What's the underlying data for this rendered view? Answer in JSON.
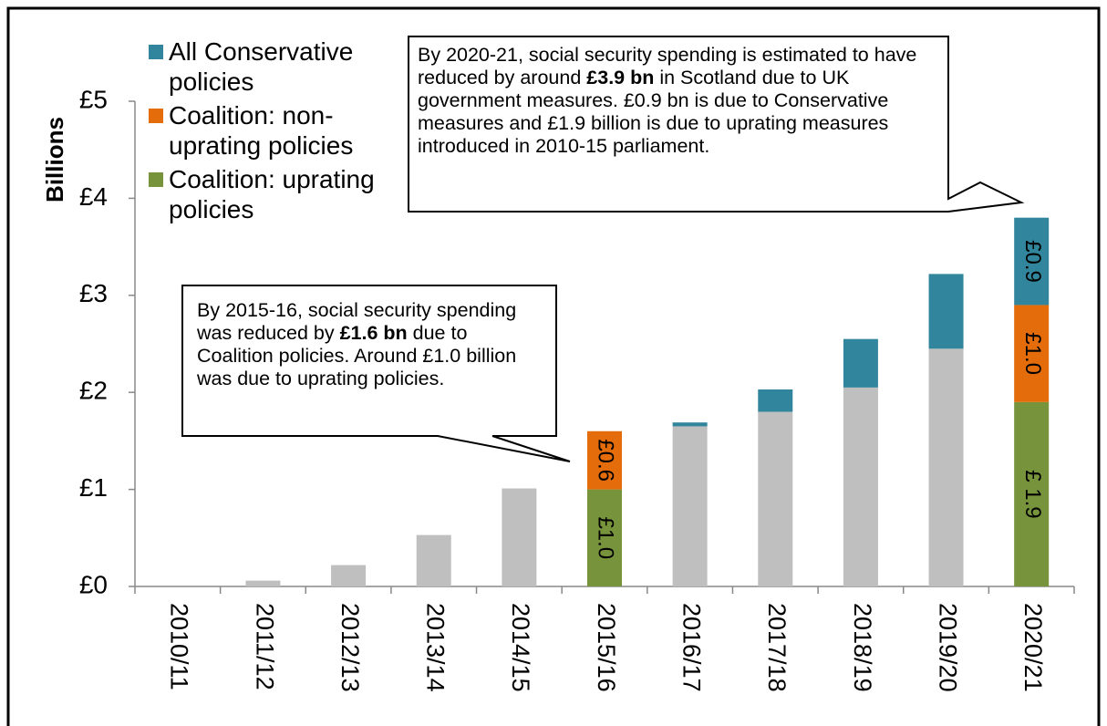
{
  "chart_data": {
    "type": "stacked_bar",
    "y_label": "Billions",
    "categories": [
      "2010/11",
      "2011/12",
      "2012/13",
      "2013/14",
      "2014/15",
      "2015/16",
      "2016/17",
      "2017/18",
      "2018/19",
      "2019/20",
      "2020/21"
    ],
    "series": [
      {
        "color": "#bfbfbf",
        "values": [
          0,
          0.06,
          0.22,
          0.53,
          1.01,
          null,
          1.65,
          1.8,
          2.05,
          2.45,
          null
        ]
      },
      {
        "name": "Coalition: uprating policies",
        "color": "#77933c",
        "values": [
          null,
          null,
          null,
          null,
          null,
          1.0,
          null,
          null,
          null,
          null,
          1.9
        ],
        "value_labels": [
          null,
          null,
          null,
          null,
          null,
          "£1.0",
          null,
          null,
          null,
          null,
          "£ 1.9"
        ]
      },
      {
        "name": "Coalition: non-uprating policies",
        "color": "#e46c0a",
        "values": [
          null,
          null,
          null,
          null,
          null,
          0.6,
          null,
          null,
          null,
          null,
          1.0
        ],
        "value_labels": [
          null,
          null,
          null,
          null,
          null,
          "£0.6",
          null,
          null,
          null,
          null,
          "£1.0"
        ]
      },
      {
        "name": "All Conservative policies",
        "color": "#31859c",
        "values": [
          null,
          null,
          null,
          null,
          null,
          null,
          0.04,
          0.23,
          0.5,
          0.77,
          0.9
        ],
        "value_labels": [
          null,
          null,
          null,
          null,
          null,
          null,
          null,
          null,
          null,
          null,
          "£0.9"
        ]
      }
    ],
    "ylim": [
      0,
      5
    ],
    "yticks": [
      {
        "value": 0,
        "label": "£0"
      },
      {
        "value": 1,
        "label": "£1"
      },
      {
        "value": 2,
        "label": "£2"
      },
      {
        "value": 3,
        "label": "£3"
      },
      {
        "value": 4,
        "label": "£4"
      },
      {
        "value": 5,
        "label": "£5"
      }
    ],
    "annotations": [
      {
        "runs": [
          {
            "text": "By 2020-21, social security spending is estimated to have reduced by around ",
            "bold": false
          },
          {
            "text": "£3.9 bn",
            "bold": true
          },
          {
            "text": " in Scotland due to UK government measures. £0.9 bn is due to Conservative measures and £1.9 billion is due to uprating measures introduced in 2010-15 parliament.",
            "bold": false
          }
        ]
      },
      {
        "runs": [
          {
            "text": "By 2015-16, social security spending was reduced by ",
            "bold": false
          },
          {
            "text": "£1.6 bn",
            "bold": true
          },
          {
            "text": " due to Coalition policies. Around £1.0 billion was due to uprating policies.",
            "bold": false
          }
        ]
      }
    ]
  }
}
